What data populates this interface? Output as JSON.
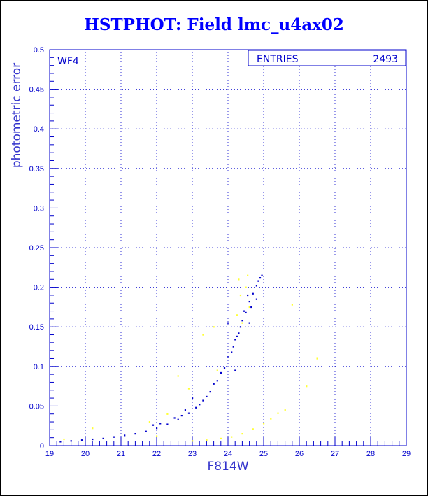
{
  "title": "HSTPHOT: Field lmc_u4ax02",
  "chart_data": {
    "type": "scatter",
    "title": "HSTPHOT: Field lmc_u4ax02",
    "xlabel": "F814W",
    "ylabel": "photometric error",
    "xlim": [
      19,
      29
    ],
    "ylim": [
      0,
      0.5
    ],
    "x_ticks": [
      "19",
      "20",
      "21",
      "22",
      "23",
      "24",
      "25",
      "26",
      "27",
      "28",
      "29"
    ],
    "y_ticks": [
      "0",
      "0.05",
      "0.1",
      "0.15",
      "0.2",
      "0.25",
      "0.3",
      "0.35",
      "0.4",
      "0.45",
      "0.5"
    ],
    "grid": true,
    "panel_label": "WF4",
    "stats_box": {
      "label": "ENTRIES",
      "value": "2493"
    },
    "series": [
      {
        "color": "#0000cc",
        "points": [
          [
            19.3,
            0.005
          ],
          [
            19.6,
            0.006
          ],
          [
            19.9,
            0.007
          ],
          [
            20.2,
            0.008
          ],
          [
            20.5,
            0.009
          ],
          [
            20.8,
            0.011
          ],
          [
            21.1,
            0.013
          ],
          [
            21.4,
            0.015
          ],
          [
            21.7,
            0.018
          ],
          [
            22.0,
            0.022
          ],
          [
            22.3,
            0.027
          ],
          [
            22.6,
            0.033
          ],
          [
            22.9,
            0.041
          ],
          [
            23.1,
            0.048
          ],
          [
            23.3,
            0.057
          ],
          [
            23.5,
            0.068
          ],
          [
            23.7,
            0.082
          ],
          [
            23.9,
            0.098
          ],
          [
            24.1,
            0.118
          ],
          [
            24.3,
            0.142
          ],
          [
            24.5,
            0.168
          ],
          [
            24.7,
            0.192
          ],
          [
            24.85,
            0.208
          ],
          [
            24.95,
            0.215
          ],
          [
            23.4,
            0.062
          ],
          [
            23.6,
            0.078
          ],
          [
            23.8,
            0.092
          ],
          [
            24.0,
            0.112
          ],
          [
            24.2,
            0.134
          ],
          [
            24.4,
            0.158
          ],
          [
            24.6,
            0.182
          ],
          [
            24.8,
            0.202
          ],
          [
            24.9,
            0.212
          ],
          [
            24.65,
            0.175
          ],
          [
            24.55,
            0.19
          ],
          [
            24.45,
            0.17
          ],
          [
            24.35,
            0.15
          ],
          [
            24.25,
            0.138
          ],
          [
            24.15,
            0.125
          ],
          [
            23.2,
            0.052
          ],
          [
            22.8,
            0.045
          ],
          [
            22.7,
            0.038
          ],
          [
            22.5,
            0.035
          ],
          [
            22.1,
            0.028
          ],
          [
            21.9,
            0.026
          ],
          [
            24.0,
            0.155
          ],
          [
            24.2,
            0.095
          ],
          [
            24.6,
            0.155
          ],
          [
            24.8,
            0.185
          ],
          [
            23.0,
            0.06
          ]
        ]
      },
      {
        "color": "#ffff33",
        "points": [
          [
            23.0,
            0.006
          ],
          [
            23.4,
            0.007
          ],
          [
            23.8,
            0.009
          ],
          [
            24.1,
            0.011
          ],
          [
            24.4,
            0.015
          ],
          [
            24.7,
            0.021
          ],
          [
            25.0,
            0.028
          ],
          [
            25.2,
            0.034
          ],
          [
            25.4,
            0.041
          ],
          [
            25.6,
            0.045
          ],
          [
            22.3,
            0.04
          ],
          [
            22.6,
            0.088
          ],
          [
            22.9,
            0.072
          ],
          [
            23.3,
            0.14
          ],
          [
            23.6,
            0.15
          ],
          [
            24.3,
            0.21
          ],
          [
            24.5,
            0.2
          ],
          [
            24.35,
            0.19
          ],
          [
            24.6,
            0.175
          ],
          [
            24.4,
            0.155
          ],
          [
            25.8,
            0.178
          ],
          [
            26.5,
            0.11
          ],
          [
            26.2,
            0.075
          ],
          [
            21.8,
            0.03
          ],
          [
            20.2,
            0.022
          ],
          [
            19.4,
            0.008
          ],
          [
            22.0,
            0.012
          ],
          [
            23.7,
            0.095
          ],
          [
            24.55,
            0.215
          ],
          [
            24.25,
            0.165
          ]
        ]
      }
    ]
  }
}
